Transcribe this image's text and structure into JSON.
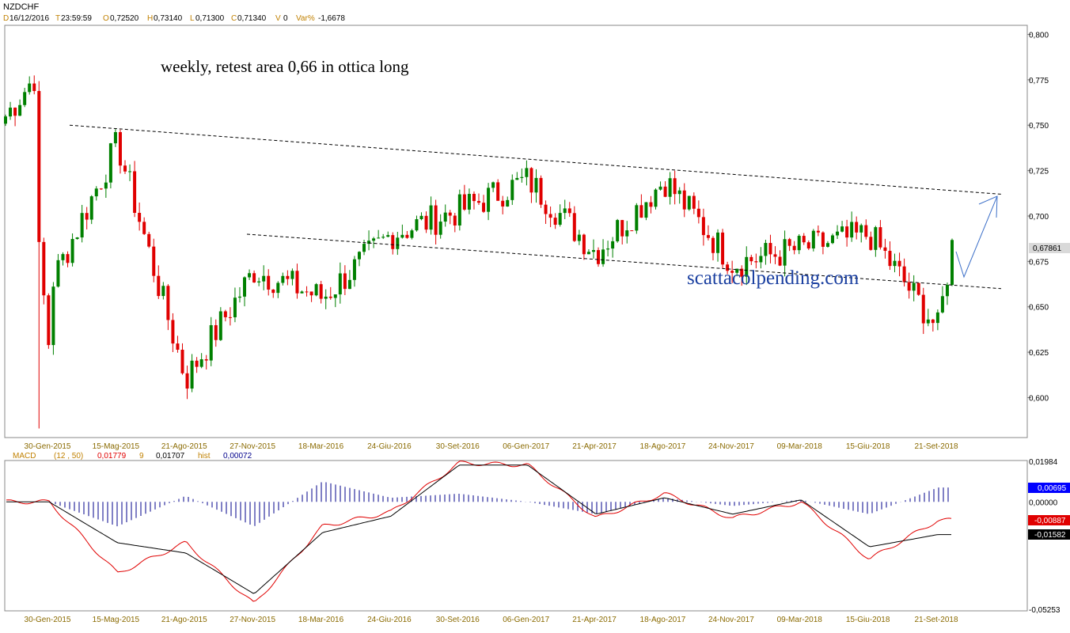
{
  "header": {
    "symbol": "NZDCHF",
    "d_key": "D",
    "date": "16/12/2016",
    "t_key": "T",
    "time": "23:59:59",
    "o_key": "O",
    "open": "0,72520",
    "h_key": "H",
    "high": "0,73140",
    "l_key": "L",
    "low": "0,71300",
    "c_key": "C",
    "close": "0,71340",
    "v_key": "V",
    "volume": "0",
    "var_key": "Var%",
    "var": "-1,6678"
  },
  "annotations": {
    "title_text": "weekly, retest area 0,66 in ottica long",
    "watermark": "scattacolpending.com"
  },
  "price_panel": {
    "last_price_label": "0,67861",
    "y_ticks": [
      "0,800",
      "0,775",
      "0,750",
      "0,725",
      "0,700",
      "0,675",
      "0,650",
      "0,625",
      "0,600"
    ],
    "x_labels": [
      "30-Gen-2015",
      "15-Mag-2015",
      "21-Ago-2015",
      "27-Nov-2015",
      "18-Mar-2016",
      "24-Giu-2016",
      "30-Set-2016",
      "06-Gen-2017",
      "21-Apr-2017",
      "18-Ago-2017",
      "24-Nov-2017",
      "09-Mar-2018",
      "15-Giu-2018",
      "21-Set-2018"
    ]
  },
  "macd_panel": {
    "label": "MACD",
    "params": "(12 , 50)",
    "macd_value": "0,01779",
    "signal_period": "9",
    "signal_value": "0,01707",
    "hist_key": "hist",
    "hist_value": "0,00072",
    "y_ticks": [
      "0,01984",
      "0,00000",
      "-0,05253"
    ],
    "badges": {
      "hist": "0,00695",
      "macd": "-0,00887",
      "signal": "-0,01582"
    },
    "x_labels": [
      "30-Gen-2015",
      "15-Mag-2015",
      "21-Ago-2015",
      "27-Nov-2015",
      "18-Mar-2016",
      "24-Giu-2016",
      "30-Set-2016",
      "06-Gen-2017",
      "21-Apr-2017",
      "18-Ago-2017",
      "24-Nov-2017",
      "09-Mar-2018",
      "15-Giu-2018",
      "21-Set-2018"
    ]
  },
  "colors": {
    "up": "#008000",
    "down": "#e00000",
    "macd_line": "#e00000",
    "signal_line": "#000000",
    "histogram": "#00008b",
    "arrow": "#3c6fc8",
    "watermark": "#1a3fa0",
    "date_text": "#8a6a00",
    "badge_hist": "#0000ff",
    "badge_macd": "#e00000",
    "badge_signal": "#000000"
  },
  "chart_data": [
    {
      "type": "candlestick",
      "title": "weekly, retest area 0,66 in ottica long",
      "symbol": "NZDCHF",
      "ylim": [
        0.578,
        0.805
      ],
      "grid": false,
      "close_path": [
        {
          "x": "30-Gen-2015",
          "y": 0.66
        },
        {
          "x": "15-Mag-2015",
          "y": 0.74
        },
        {
          "x": "21-Ago-2015",
          "y": 0.61
        },
        {
          "x": "27-Nov-2015",
          "y": 0.67
        },
        {
          "x": "18-Mar-2016",
          "y": 0.655
        },
        {
          "x": "24-Giu-2016",
          "y": 0.69
        },
        {
          "x": "30-Set-2016",
          "y": 0.703
        },
        {
          "x": "06-Gen-2017",
          "y": 0.72
        },
        {
          "x": "21-Apr-2017",
          "y": 0.68
        },
        {
          "x": "18-Ago-2017",
          "y": 0.72
        },
        {
          "x": "24-Nov-2017",
          "y": 0.674
        },
        {
          "x": "09-Mar-2018",
          "y": 0.682
        },
        {
          "x": "15-Giu-2018",
          "y": 0.69
        },
        {
          "x": "21-Set-2018",
          "y": 0.638
        }
      ],
      "last_close": 0.67861,
      "trendlines": [
        {
          "kind": "dashed-resistance",
          "from": 0.75,
          "to": 0.712
        },
        {
          "kind": "dashed-support",
          "from": 0.69,
          "to": 0.66
        }
      ]
    },
    {
      "type": "line",
      "title": "MACD (12 , 50)",
      "ylim": [
        -0.05253,
        0.01984
      ],
      "series": [
        {
          "name": "MACD",
          "values": [
            0.0,
            -0.035,
            -0.02,
            -0.05,
            -0.012,
            -0.005,
            0.019,
            0.018,
            -0.008,
            0.004,
            -0.008,
            0.0,
            -0.028,
            -0.009
          ]
        },
        {
          "name": "9",
          "values": [
            0.0,
            -0.02,
            -0.025,
            -0.045,
            -0.015,
            -0.007,
            0.018,
            0.018,
            -0.006,
            0.002,
            -0.006,
            0.001,
            -0.022,
            -0.016
          ]
        },
        {
          "name": "hist",
          "values": [
            0.0,
            -0.012,
            0.003,
            -0.012,
            0.01,
            0.002,
            0.004,
            0.0,
            -0.006,
            0.002,
            -0.002,
            0.001,
            -0.006,
            0.007
          ]
        }
      ],
      "categories": [
        "30-Gen-2015",
        "15-Mag-2015",
        "21-Ago-2015",
        "27-Nov-2015",
        "18-Mar-2016",
        "24-Giu-2016",
        "30-Set-2016",
        "06-Gen-2017",
        "21-Apr-2017",
        "18-Ago-2017",
        "24-Nov-2017",
        "09-Mar-2018",
        "15-Giu-2018",
        "21-Set-2018"
      ]
    }
  ]
}
